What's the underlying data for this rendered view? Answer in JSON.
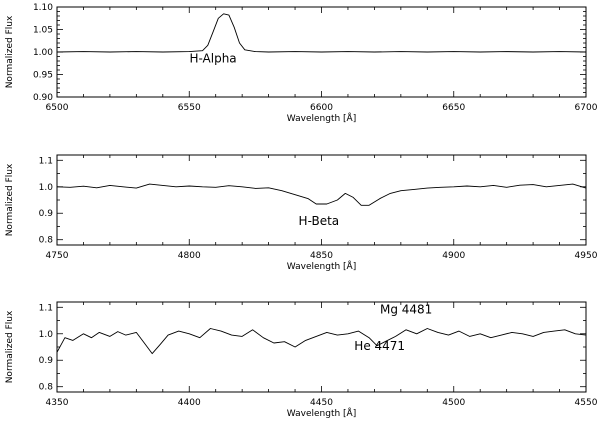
{
  "chart_data": [
    {
      "type": "line",
      "xlabel": "Wavelength [Å]",
      "ylabel": "Normalized Flux",
      "xlim": [
        6500,
        6700
      ],
      "ylim": [
        0.9,
        1.1
      ],
      "xticks": [
        6500,
        6550,
        6600,
        6650,
        6700
      ],
      "xtick_labels": [
        "6500",
        "6550",
        "6600",
        "6650",
        "6700"
      ],
      "yticks": [
        0.9,
        0.95,
        1.0,
        1.05,
        1.1
      ],
      "ytick_labels": [
        "0.90",
        "0.95",
        "1.00",
        "1.05",
        "1.10"
      ],
      "annotations": [
        {
          "text": "H-Alpha",
          "x": 6559,
          "y": 0.9765
        }
      ],
      "series": [
        {
          "x": [
            6500,
            6510,
            6520,
            6530,
            6540,
            6550,
            6555,
            6557,
            6559,
            6561,
            6563,
            6565,
            6567,
            6569,
            6571,
            6575,
            6580,
            6590,
            6600,
            6610,
            6620,
            6630,
            6640,
            6650,
            6660,
            6670,
            6680,
            6690,
            6700
          ],
          "y": [
            1.0,
            1.001,
            1.0,
            1.001,
            1.0,
            1.001,
            1.003,
            1.015,
            1.045,
            1.075,
            1.085,
            1.082,
            1.055,
            1.02,
            1.005,
            1.001,
            1.0,
            1.001,
            1.0,
            1.001,
            1.0,
            1.001,
            1.0,
            1.001,
            1.0,
            1.001,
            1.0,
            1.001,
            1.0
          ]
        }
      ]
    },
    {
      "type": "line",
      "xlabel": "Wavelength [Å]",
      "ylabel": "Normalized Flux",
      "xlim": [
        4750,
        4950
      ],
      "ylim": [
        0.78,
        1.12
      ],
      "xticks": [
        4750,
        4800,
        4850,
        4900,
        4950
      ],
      "xtick_labels": [
        "4750",
        "4800",
        "4850",
        "4900",
        "4950"
      ],
      "yticks": [
        0.8,
        0.9,
        1.0,
        1.1
      ],
      "ytick_labels": [
        "0.8",
        "0.9",
        "1.0",
        "1.1"
      ],
      "annotations": [
        {
          "text": "H-Beta",
          "x": 4849,
          "y": 0.856
        }
      ],
      "series": [
        {
          "x": [
            4750,
            4755,
            4760,
            4765,
            4770,
            4775,
            4780,
            4785,
            4790,
            4795,
            4800,
            4805,
            4810,
            4815,
            4820,
            4825,
            4830,
            4835,
            4840,
            4845,
            4848,
            4852,
            4856,
            4859,
            4862,
            4865,
            4868,
            4872,
            4876,
            4880,
            4885,
            4890,
            4895,
            4900,
            4905,
            4910,
            4915,
            4920,
            4925,
            4930,
            4935,
            4940,
            4945,
            4950
          ],
          "y": [
            1.0,
            0.998,
            1.002,
            0.996,
            1.005,
            1.0,
            0.995,
            1.01,
            1.005,
            1.0,
            1.003,
            1.0,
            0.998,
            1.004,
            1.0,
            0.994,
            0.996,
            0.985,
            0.97,
            0.955,
            0.935,
            0.935,
            0.95,
            0.975,
            0.96,
            0.93,
            0.93,
            0.955,
            0.975,
            0.985,
            0.99,
            0.995,
            0.998,
            1.0,
            1.003,
            1.0,
            1.005,
            0.998,
            1.006,
            1.008,
            1.0,
            1.005,
            1.01,
            0.995
          ]
        }
      ]
    },
    {
      "type": "line",
      "xlabel": "Wavelength [Å]",
      "ylabel": "Normalized Flux",
      "xlim": [
        4350,
        4550
      ],
      "ylim": [
        0.78,
        1.12
      ],
      "xticks": [
        4350,
        4400,
        4450,
        4500,
        4550
      ],
      "xtick_labels": [
        "4350",
        "4400",
        "4450",
        "4500",
        "4550"
      ],
      "yticks": [
        0.8,
        0.9,
        1.0,
        1.1
      ],
      "ytick_labels": [
        "0.8",
        "0.9",
        "1.0",
        "1.1"
      ],
      "annotations": [
        {
          "text": "Mg 4481",
          "x": 4482,
          "y": 1.077
        },
        {
          "text": "He 4471",
          "x": 4472,
          "y": 0.939
        }
      ],
      "series": [
        {
          "x": [
            4350,
            4353,
            4356,
            4360,
            4363,
            4366,
            4370,
            4373,
            4376,
            4380,
            4383,
            4386,
            4389,
            4392,
            4396,
            4400,
            4404,
            4408,
            4412,
            4416,
            4420,
            4424,
            4428,
            4432,
            4436,
            4440,
            4444,
            4448,
            4452,
            4456,
            4460,
            4464,
            4468,
            4471,
            4474,
            4478,
            4482,
            4486,
            4490,
            4494,
            4498,
            4502,
            4506,
            4510,
            4514,
            4518,
            4522,
            4526,
            4530,
            4534,
            4538,
            4542,
            4546,
            4550
          ],
          "y": [
            0.93,
            0.985,
            0.975,
            1.0,
            0.985,
            1.005,
            0.99,
            1.008,
            0.995,
            1.005,
            0.965,
            0.925,
            0.96,
            0.995,
            1.01,
            1.0,
            0.985,
            1.02,
            1.01,
            0.995,
            0.99,
            1.015,
            0.985,
            0.965,
            0.97,
            0.95,
            0.975,
            0.99,
            1.005,
            0.995,
            1.0,
            1.01,
            0.985,
            0.955,
            0.97,
            0.99,
            1.015,
            1.0,
            1.02,
            1.005,
            0.995,
            1.01,
            0.99,
            1.0,
            0.985,
            0.995,
            1.005,
            1.0,
            0.99,
            1.005,
            1.01,
            1.015,
            1.0,
            0.995
          ]
        }
      ]
    }
  ]
}
